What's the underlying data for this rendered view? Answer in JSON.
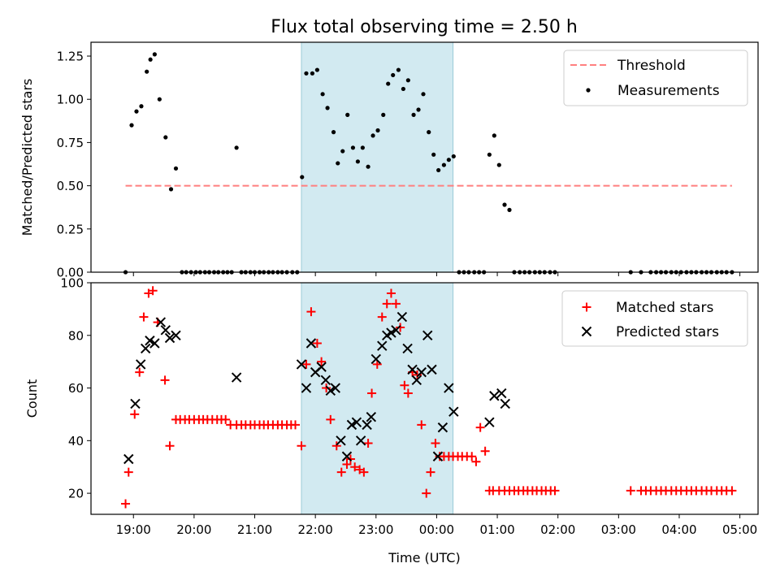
{
  "title": "Flux total observing time = 2.50 h",
  "colors": {
    "threshold": "#ff7f7f",
    "measurement": "#000000",
    "matched": "#ff0000",
    "predicted": "#000000",
    "highlight": "#add8e6"
  },
  "chart_data": [
    {
      "type": "scatter",
      "panel": "top",
      "ylabel": "Matched/Predicted stars",
      "xlabel": "",
      "ylim": [
        0,
        1.33
      ],
      "yticks": [
        0.0,
        0.25,
        0.5,
        0.75,
        1.0,
        1.25
      ],
      "ytick_labels": [
        "0.00",
        "0.25",
        "0.50",
        "0.75",
        "1.00",
        "1.25"
      ],
      "xlim": [
        18.3,
        29.3
      ],
      "xticks": [
        19,
        20,
        21,
        22,
        23,
        24,
        25,
        26,
        27,
        28,
        29
      ],
      "grid": false,
      "legend": {
        "placement": "top-right",
        "entries": [
          "Threshold",
          "Measurements"
        ]
      },
      "highlight_span": [
        21.77,
        24.27
      ],
      "threshold": {
        "name": "Threshold",
        "value": 0.5,
        "x": [
          18.87,
          28.87
        ]
      },
      "series": [
        {
          "name": "Measurements",
          "x": [
            18.87,
            18.97,
            19.05,
            19.13,
            19.22,
            19.28,
            19.35,
            19.43,
            19.53,
            19.62,
            19.7,
            19.8,
            19.87,
            19.95,
            20.03,
            20.1,
            20.18,
            20.25,
            20.33,
            20.4,
            20.48,
            20.55,
            20.62,
            20.7,
            20.78,
            20.85,
            20.93,
            21.0,
            21.08,
            21.15,
            21.23,
            21.3,
            21.38,
            21.45,
            21.53,
            21.62,
            21.7,
            21.78,
            21.85,
            21.95,
            22.03,
            22.12,
            22.2,
            22.3,
            22.37,
            22.45,
            22.53,
            22.62,
            22.7,
            22.78,
            22.87,
            22.95,
            23.03,
            23.12,
            23.2,
            23.28,
            23.37,
            23.45,
            23.53,
            23.62,
            23.7,
            23.78,
            23.87,
            23.95,
            24.03,
            24.12,
            24.2,
            24.28,
            24.37,
            24.45,
            24.53,
            24.62,
            24.7,
            24.78,
            24.87,
            24.95,
            25.03,
            25.12,
            25.2,
            25.28,
            25.37,
            25.45,
            25.53,
            25.62,
            25.7,
            25.78,
            25.87,
            25.95,
            27.2,
            27.37,
            27.53,
            27.62,
            27.7,
            27.78,
            27.87,
            27.95,
            28.03,
            28.12,
            28.2,
            28.28,
            28.37,
            28.45,
            28.53,
            28.62,
            28.7,
            28.78,
            28.87
          ],
          "y": [
            0,
            0.85,
            0.93,
            0.96,
            1.16,
            1.23,
            1.26,
            1.0,
            0.78,
            0.48,
            0.6,
            0,
            0,
            0,
            0,
            0,
            0,
            0,
            0,
            0,
            0,
            0,
            0,
            0.72,
            0,
            0,
            0,
            0,
            0,
            0,
            0,
            0,
            0,
            0,
            0,
            0,
            0,
            0.55,
            1.15,
            1.15,
            1.17,
            1.03,
            0.95,
            0.81,
            0.63,
            0.7,
            0.91,
            0.72,
            0.64,
            0.72,
            0.61,
            0.79,
            0.82,
            0.91,
            1.09,
            1.14,
            1.17,
            1.06,
            1.11,
            0.91,
            0.94,
            1.03,
            0.81,
            0.68,
            0.59,
            0.62,
            0.65,
            0.67,
            0,
            0,
            0,
            0,
            0,
            0,
            0.68,
            0.79,
            0.62,
            0.39,
            0.36,
            0,
            0,
            0,
            0,
            0,
            0,
            0,
            0,
            0,
            0,
            0,
            0,
            0,
            0,
            0,
            0,
            0,
            0,
            0,
            0,
            0,
            0,
            0,
            0,
            0,
            0,
            0,
            0
          ]
        }
      ]
    },
    {
      "type": "scatter",
      "panel": "bottom",
      "ylabel": "Count",
      "xlabel": "Time (UTC)",
      "ylim": [
        12,
        100
      ],
      "yticks": [
        20,
        40,
        60,
        80,
        100
      ],
      "ytick_labels": [
        "20",
        "40",
        "60",
        "80",
        "100"
      ],
      "xlim": [
        18.3,
        29.3
      ],
      "xticks": [
        19,
        20,
        21,
        22,
        23,
        24,
        25,
        26,
        27,
        28,
        29
      ],
      "xtick_labels": [
        "19:00",
        "20:00",
        "21:00",
        "22:00",
        "23:00",
        "00:00",
        "01:00",
        "02:00",
        "03:00",
        "04:00",
        "05:00"
      ],
      "grid": false,
      "legend": {
        "placement": "top-right",
        "entries": [
          "Matched stars",
          "Predicted stars"
        ]
      },
      "highlight_span": [
        21.77,
        24.27
      ],
      "series": [
        {
          "name": "Matched stars",
          "marker": "plus",
          "x": [
            18.87,
            18.92,
            19.02,
            19.1,
            19.17,
            19.25,
            19.32,
            19.4,
            19.52,
            19.6,
            19.7,
            19.77,
            19.85,
            19.92,
            20.0,
            20.08,
            20.15,
            20.22,
            20.3,
            20.38,
            20.45,
            20.52,
            20.6,
            20.7,
            20.78,
            20.85,
            20.93,
            21.0,
            21.08,
            21.15,
            21.22,
            21.3,
            21.38,
            21.45,
            21.53,
            21.6,
            21.67,
            21.77,
            21.85,
            21.93,
            22.03,
            22.1,
            22.18,
            22.25,
            22.35,
            22.43,
            22.52,
            22.58,
            22.65,
            22.73,
            22.8,
            22.87,
            22.93,
            23.02,
            23.1,
            23.18,
            23.25,
            23.33,
            23.4,
            23.47,
            23.53,
            23.6,
            23.68,
            23.75,
            23.83,
            23.9,
            23.98,
            24.05,
            24.12,
            24.2,
            24.27,
            24.35,
            24.42,
            24.5,
            24.58,
            24.65,
            24.72,
            24.8,
            24.87,
            24.93,
            25.03,
            25.12,
            25.2,
            25.28,
            25.35,
            25.43,
            25.5,
            25.58,
            25.65,
            25.73,
            25.8,
            25.88,
            25.95,
            27.2,
            27.37,
            27.45,
            27.53,
            27.62,
            27.7,
            27.78,
            27.87,
            27.95,
            28.03,
            28.12,
            28.2,
            28.28,
            28.37,
            28.45,
            28.53,
            28.62,
            28.7,
            28.78,
            28.87
          ],
          "y": [
            16,
            28,
            50,
            66,
            87,
            96,
            97,
            85,
            63,
            38,
            48,
            48,
            48,
            48,
            48,
            48,
            48,
            48,
            48,
            48,
            48,
            48,
            46,
            46,
            46,
            46,
            46,
            46,
            46,
            46,
            46,
            46,
            46,
            46,
            46,
            46,
            46,
            38,
            69,
            89,
            77,
            70,
            60,
            48,
            38,
            28,
            31,
            33,
            30,
            29,
            28,
            39,
            58,
            69,
            87,
            92,
            96,
            92,
            83,
            61,
            58,
            66,
            65,
            46,
            20,
            28,
            39,
            34,
            34,
            34,
            34,
            34,
            34,
            34,
            34,
            32,
            45,
            36,
            21,
            21,
            21,
            21,
            21,
            21,
            21,
            21,
            21,
            21,
            21,
            21,
            21,
            21,
            21,
            21,
            21,
            21,
            21,
            21,
            21,
            21,
            21,
            21,
            21,
            21,
            21,
            21,
            21,
            21,
            21,
            21,
            21,
            21,
            21
          ]
        },
        {
          "name": "Predicted stars",
          "marker": "x",
          "x": [
            18.92,
            19.03,
            19.12,
            19.2,
            19.27,
            19.35,
            19.45,
            19.53,
            19.6,
            19.7,
            20.7,
            21.77,
            21.85,
            21.93,
            22.0,
            22.1,
            22.17,
            22.25,
            22.33,
            22.42,
            22.52,
            22.6,
            22.68,
            22.75,
            22.85,
            22.92,
            23.0,
            23.1,
            23.18,
            23.25,
            23.33,
            23.43,
            23.52,
            23.6,
            23.67,
            23.75,
            23.85,
            23.92,
            24.02,
            24.1,
            24.2,
            24.28,
            24.87,
            24.95,
            25.07,
            25.13
          ],
          "y": [
            33,
            54,
            69,
            75,
            78,
            77,
            85,
            82,
            79,
            80,
            64,
            69,
            60,
            77,
            66,
            68,
            63,
            59,
            60,
            40,
            34,
            46,
            47,
            40,
            46,
            49,
            71,
            76,
            80,
            81,
            82,
            87,
            75,
            67,
            63,
            66,
            80,
            67,
            34,
            45,
            60,
            51,
            47,
            57,
            58,
            54
          ]
        }
      ]
    }
  ]
}
